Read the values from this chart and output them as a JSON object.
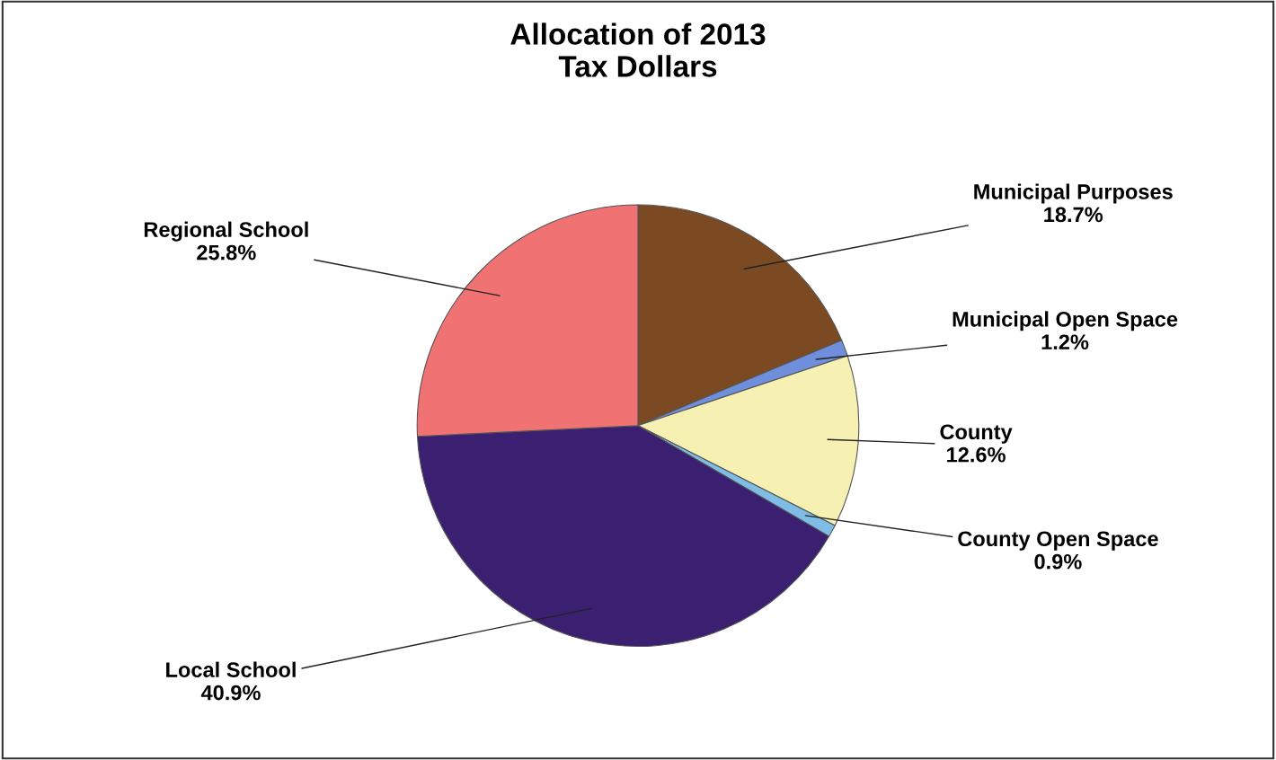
{
  "chart_data": {
    "type": "pie",
    "title": "Allocation of 2013\nTax Dollars",
    "categories": [
      "Municipal Purposes",
      "Municipal Open Space",
      "County",
      "County Open Space",
      "Local School",
      "Regional School"
    ],
    "values": [
      18.7,
      1.2,
      12.6,
      0.9,
      40.9,
      25.8
    ],
    "value_labels": [
      "18.7%",
      "1.2%",
      "12.6%",
      "0.9%",
      "40.9%",
      "25.8%"
    ],
    "colors": [
      "#7b4a22",
      "#6f8fdc",
      "#f6f0b2",
      "#7fbde6",
      "#3b1f70",
      "#f07272"
    ],
    "legend": false
  }
}
